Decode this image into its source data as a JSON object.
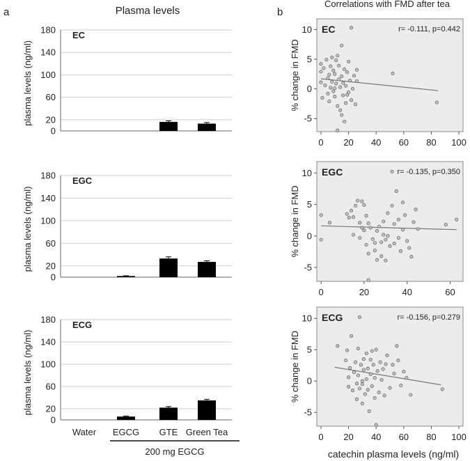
{
  "panel_a": {
    "label": "a",
    "title": "Plasma levels",
    "group_label": "200 mg EGCG"
  },
  "panel_b": {
    "label": "b",
    "title": "Correlations with FMD after tea",
    "xlabel": "catechin plasma levels (ng/ml)"
  },
  "chart_data": [
    {
      "type": "bar",
      "panel": "a",
      "name": "EC",
      "categories": [
        "Water",
        "EGCG",
        "GTE",
        "Green Tea"
      ],
      "values": [
        0,
        0,
        16,
        13
      ],
      "errors": [
        0,
        0,
        2,
        2
      ],
      "ylabel": "plasma levels (ng/ml)",
      "ylim": [
        0,
        180
      ],
      "yticks": [
        0,
        20,
        60,
        100,
        140,
        180
      ],
      "show_xlabels": false
    },
    {
      "type": "bar",
      "panel": "a",
      "name": "EGC",
      "categories": [
        "Water",
        "EGCG",
        "GTE",
        "Green Tea"
      ],
      "values": [
        0,
        2,
        33,
        27
      ],
      "errors": [
        0,
        0.5,
        3,
        2
      ],
      "ylabel": "plasma levels (ng/ml)",
      "ylim": [
        0,
        180
      ],
      "yticks": [
        0,
        20,
        60,
        100,
        140,
        180
      ],
      "show_xlabels": false
    },
    {
      "type": "bar",
      "panel": "a",
      "name": "ECG",
      "categories": [
        "Water",
        "EGCG",
        "GTE",
        "Green Tea"
      ],
      "values": [
        0,
        6,
        22,
        35
      ],
      "errors": [
        0,
        1,
        2,
        2
      ],
      "ylabel": "plasma levels (ng/ml)",
      "ylim": [
        0,
        180
      ],
      "yticks": [
        0,
        20,
        60,
        100,
        140,
        180
      ],
      "show_xlabels": true
    },
    {
      "type": "scatter",
      "panel": "b",
      "name": "EC",
      "stat": "r= -0.111, p=0.442",
      "ylabel": "% change in FMD",
      "xlim": [
        -3,
        103
      ],
      "ylim": [
        -7.2,
        11.8
      ],
      "xticks": [
        0,
        20,
        40,
        60,
        80,
        100
      ],
      "yticks": [
        -5,
        0,
        5,
        10
      ],
      "show_xticks": true,
      "fit": [
        [
          0,
          1.7
        ],
        [
          85,
          -0.3
        ]
      ],
      "points": [
        [
          0,
          4.2
        ],
        [
          0,
          2.9
        ],
        [
          0,
          1.1
        ],
        [
          1,
          -1.5
        ],
        [
          2,
          3.5
        ],
        [
          3,
          0.6
        ],
        [
          4,
          4.9
        ],
        [
          5,
          1.8
        ],
        [
          5,
          -0.8
        ],
        [
          6,
          2.4
        ],
        [
          6,
          -2.1
        ],
        [
          7,
          0.2
        ],
        [
          8,
          5.3
        ],
        [
          8,
          1.2
        ],
        [
          9,
          3.1
        ],
        [
          9,
          -0.4
        ],
        [
          10,
          2.5
        ],
        [
          10,
          -1.3
        ],
        [
          11,
          4.8
        ],
        [
          11,
          0.9
        ],
        [
          12,
          5.6
        ],
        [
          12,
          -2.9
        ],
        [
          13,
          1.6
        ],
        [
          13,
          3.9
        ],
        [
          14,
          -3.6
        ],
        [
          14,
          0.3
        ],
        [
          15,
          7.3
        ],
        [
          15,
          2.1
        ],
        [
          15,
          -4.4
        ],
        [
          16,
          1.0
        ],
        [
          16,
          -1.1
        ],
        [
          17,
          3.3
        ],
        [
          18,
          0.5
        ],
        [
          18,
          -2.4
        ],
        [
          19,
          2.8
        ],
        [
          20,
          4.6
        ],
        [
          20,
          -0.6
        ],
        [
          21,
          1.4
        ],
        [
          22,
          10.3
        ],
        [
          22,
          -1.9
        ],
        [
          23,
          0.0
        ],
        [
          24,
          2.2
        ],
        [
          25,
          -2.6
        ],
        [
          26,
          1.3
        ],
        [
          12,
          -7.0
        ],
        [
          17,
          -5.5
        ],
        [
          26,
          3.2
        ],
        [
          52,
          2.6
        ],
        [
          84,
          -2.3
        ],
        [
          7,
          3.8
        ],
        [
          10,
          0.1
        ],
        [
          19,
          -1.0
        ]
      ]
    },
    {
      "type": "scatter",
      "panel": "b",
      "name": "EGC",
      "stat": "r= -0.135, p=0.350",
      "ylabel": "% change in FMD",
      "xlim": [
        -2,
        66
      ],
      "ylim": [
        -7.2,
        11.8
      ],
      "xticks": [
        0,
        20,
        40,
        60
      ],
      "yticks": [
        -5,
        0,
        5,
        10
      ],
      "show_xticks": true,
      "fit": [
        [
          0,
          1.6
        ],
        [
          63,
          1.0
        ]
      ],
      "points": [
        [
          0,
          3.3
        ],
        [
          0,
          -0.6
        ],
        [
          4,
          2.1
        ],
        [
          12,
          3.5
        ],
        [
          13,
          2.9
        ],
        [
          14,
          4.0
        ],
        [
          15,
          3.0
        ],
        [
          15,
          0.2
        ],
        [
          16,
          4.8
        ],
        [
          17,
          5.6
        ],
        [
          18,
          2.1
        ],
        [
          18,
          -0.3
        ],
        [
          19,
          5.5
        ],
        [
          19,
          1.3
        ],
        [
          20,
          4.9
        ],
        [
          20,
          0.9
        ],
        [
          21,
          3.2
        ],
        [
          21,
          -1.4
        ],
        [
          22,
          2.0
        ],
        [
          22,
          -2.8
        ],
        [
          23,
          1.3
        ],
        [
          24,
          -0.5
        ],
        [
          25,
          -1.1
        ],
        [
          25,
          -2.3
        ],
        [
          26,
          0.8
        ],
        [
          27,
          1.5
        ],
        [
          28,
          -1.0
        ],
        [
          28,
          -3.2
        ],
        [
          29,
          0.2
        ],
        [
          29,
          2.3
        ],
        [
          30,
          -0.6
        ],
        [
          30,
          -3.9
        ],
        [
          31,
          3.6
        ],
        [
          31,
          0.0
        ],
        [
          32,
          -1.6
        ],
        [
          33,
          4.8
        ],
        [
          33,
          10.2
        ],
        [
          34,
          1.9
        ],
        [
          34,
          -1.2
        ],
        [
          35,
          7.1
        ],
        [
          36,
          2.6
        ],
        [
          36,
          -0.3
        ],
        [
          37,
          -2.4
        ],
        [
          38,
          5.3
        ],
        [
          38,
          1.0
        ],
        [
          39,
          3.3
        ],
        [
          40,
          -0.8
        ],
        [
          41,
          -1.9
        ],
        [
          42,
          -3.3
        ],
        [
          43,
          2.2
        ],
        [
          44,
          4.2
        ],
        [
          45,
          1.1
        ],
        [
          58,
          1.8
        ],
        [
          63,
          2.6
        ],
        [
          22,
          -7.0
        ],
        [
          26,
          -3.8
        ]
      ]
    },
    {
      "type": "scatter",
      "panel": "b",
      "name": "ECG",
      "stat": "r= -0.156, p=0.279",
      "ylabel": "% change in FMD",
      "xlim": [
        -3,
        103
      ],
      "ylim": [
        -7.2,
        11.8
      ],
      "xticks": [
        0,
        20,
        40,
        60,
        80,
        100
      ],
      "yticks": [
        -5,
        0,
        5,
        10
      ],
      "show_xticks": true,
      "fit": [
        [
          10,
          2.2
        ],
        [
          87,
          -0.6
        ]
      ],
      "points": [
        [
          12,
          5.6
        ],
        [
          18,
          3.3
        ],
        [
          19,
          4.9
        ],
        [
          20,
          0.6
        ],
        [
          20,
          -0.9
        ],
        [
          21,
          2.1
        ],
        [
          22,
          7.2
        ],
        [
          23,
          -1.5
        ],
        [
          24,
          1.4
        ],
        [
          25,
          3.0
        ],
        [
          26,
          -0.4
        ],
        [
          26,
          -2.9
        ],
        [
          27,
          0.9
        ],
        [
          27,
          5.2
        ],
        [
          28,
          10.2
        ],
        [
          28,
          -1.2
        ],
        [
          29,
          2.6
        ],
        [
          30,
          -0.5
        ],
        [
          30,
          -3.6
        ],
        [
          31,
          1.8
        ],
        [
          31,
          3.5
        ],
        [
          32,
          -2.1
        ],
        [
          33,
          0.3
        ],
        [
          33,
          4.4
        ],
        [
          34,
          -1.4
        ],
        [
          34,
          2.0
        ],
        [
          35,
          -4.8
        ],
        [
          36,
          1.1
        ],
        [
          36,
          3.4
        ],
        [
          37,
          4.8
        ],
        [
          37,
          -0.8
        ],
        [
          38,
          2.6
        ],
        [
          39,
          -2.7
        ],
        [
          39,
          0.5
        ],
        [
          40,
          5.0
        ],
        [
          40,
          -7.0
        ],
        [
          41,
          1.6
        ],
        [
          42,
          -1.8
        ],
        [
          43,
          3.0
        ],
        [
          44,
          0.2
        ],
        [
          45,
          1.9
        ],
        [
          46,
          -2.3
        ],
        [
          47,
          2.7
        ],
        [
          48,
          4.1
        ],
        [
          50,
          -1.1
        ],
        [
          52,
          2.6
        ],
        [
          53,
          1.2
        ],
        [
          55,
          5.6
        ],
        [
          56,
          3.3
        ],
        [
          58,
          -0.7
        ],
        [
          60,
          1.5
        ],
        [
          62,
          0.5
        ],
        [
          65,
          -2.2
        ],
        [
          88,
          -1.3
        ],
        [
          30,
          0.0
        ]
      ]
    }
  ]
}
